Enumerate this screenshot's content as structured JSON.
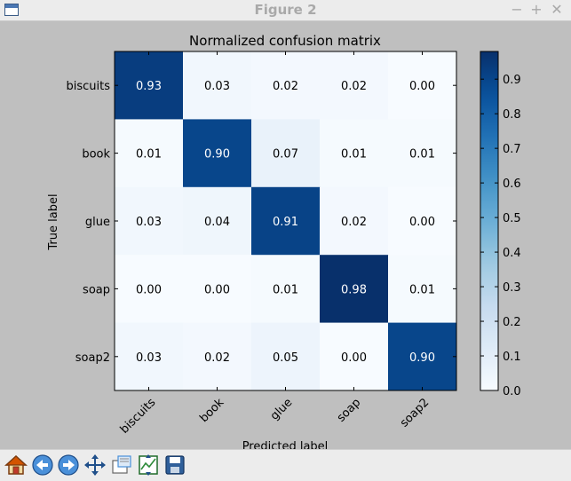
{
  "window": {
    "title": "Figure 2",
    "controls": {
      "minimize": "−",
      "maximize": "+",
      "close": "✕"
    }
  },
  "toolbar": {
    "tools": [
      {
        "icon": "home-icon"
      },
      {
        "icon": "back-arrow-icon"
      },
      {
        "icon": "forward-arrow-icon"
      },
      {
        "icon": "pan-icon"
      },
      {
        "icon": "zoom-rect-icon"
      },
      {
        "icon": "subplots-icon"
      },
      {
        "icon": "save-icon"
      }
    ]
  },
  "chart_data": {
    "type": "heatmap",
    "title": "Normalized confusion matrix",
    "xlabel": "Predicted label",
    "ylabel": "True label",
    "x_categories": [
      "biscuits",
      "book",
      "glue",
      "soap",
      "soap2"
    ],
    "y_categories": [
      "biscuits",
      "book",
      "glue",
      "soap",
      "soap2"
    ],
    "values": [
      [
        0.93,
        0.03,
        0.02,
        0.02,
        0.0
      ],
      [
        0.01,
        0.9,
        0.07,
        0.01,
        0.01
      ],
      [
        0.03,
        0.04,
        0.91,
        0.02,
        0.0
      ],
      [
        0.0,
        0.0,
        0.01,
        0.98,
        0.01
      ],
      [
        0.03,
        0.02,
        0.05,
        0.0,
        0.9
      ]
    ],
    "colormap": "Blues",
    "colorbar": {
      "range": [
        0.0,
        0.98
      ],
      "ticks": [
        "0.0",
        "0.1",
        "0.2",
        "0.3",
        "0.4",
        "0.5",
        "0.6",
        "0.7",
        "0.8",
        "0.9"
      ]
    },
    "colors": {
      "low": "#f7fbff",
      "high": "#08306b",
      "background": "#bfbfbf",
      "light_text": "#ffffff",
      "dark_text": "#000000"
    }
  }
}
